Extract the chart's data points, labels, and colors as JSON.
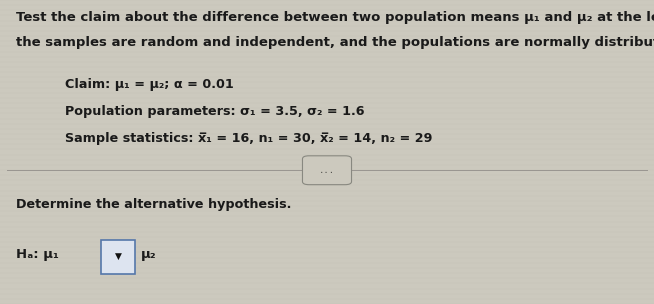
{
  "bg_color": "#ccc9be",
  "text_color": "#1a1a1a",
  "fig_width": 6.54,
  "fig_height": 3.04,
  "dpi": 100,
  "line1": "Test the claim about the difference between two population means μ₁ and μ₂ at the level of significance α. Assume",
  "line2": "the samples are random and independent, and the populations are normally distributed.",
  "claim_line": "Claim: μ₁ = μ₂; α = 0.01",
  "pop_param_line": "Population parameters: σ₁ = 3.5, σ₂ = 1.6",
  "sample_stat_line": "Sample statistics: x̅₁ = 16, n₁ = 30, x̅₂ = 14, n₂ = 29",
  "dots_text": "...",
  "determine_text": "Determine the alternative hypothesis.",
  "ha_prefix": "Hₐ: μ₁",
  "ha_suffix": "μ₂",
  "dropdown_symbol": "▼",
  "main_fontsize": 9.5,
  "small_fontsize": 9.2,
  "ha_fontsize": 9.5
}
